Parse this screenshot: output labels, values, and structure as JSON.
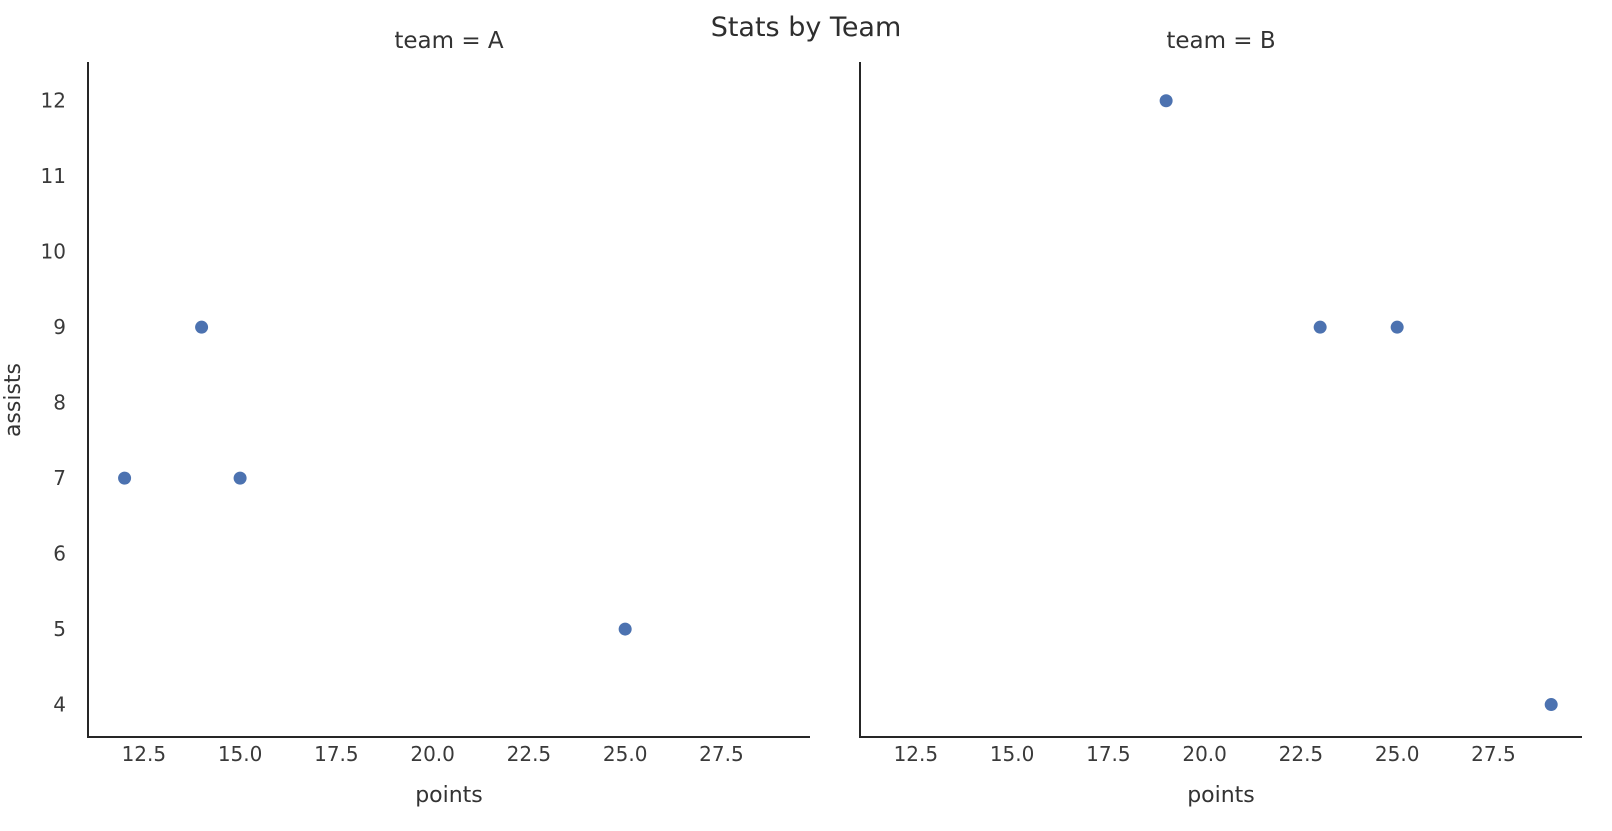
{
  "chart_data": {
    "type": "scatter",
    "title": "Stats by Team",
    "facet_by": "team",
    "xlabel": "points",
    "ylabel": "assists",
    "point_color": "#4c72b0",
    "axis_color": "#262626",
    "tick_label_color": "#3a3a3a",
    "grid": false,
    "legend": "none",
    "xlim": [
      11.05,
      29.8
    ],
    "ylim": [
      3.57,
      12.5
    ],
    "x_tick_values": [
      12.5,
      15.0,
      17.5,
      20.0,
      22.5,
      25.0,
      27.5
    ],
    "x_tick_labels": [
      "12.5",
      "15.0",
      "17.5",
      "20.0",
      "22.5",
      "25.0",
      "27.5"
    ],
    "y_tick_values": [
      4,
      5,
      6,
      7,
      8,
      9,
      10,
      11,
      12
    ],
    "y_tick_labels": [
      "4",
      "5",
      "6",
      "7",
      "8",
      "9",
      "10",
      "11",
      "12"
    ],
    "panels": [
      {
        "title": "team = A",
        "team": "A",
        "points": [
          {
            "points": 12,
            "assists": 7
          },
          {
            "points": 14,
            "assists": 9
          },
          {
            "points": 15,
            "assists": 7
          },
          {
            "points": 25,
            "assists": 5
          }
        ]
      },
      {
        "title": "team = B",
        "team": "B",
        "points": [
          {
            "points": 19,
            "assists": 12
          },
          {
            "points": 23,
            "assists": 9
          },
          {
            "points": 25,
            "assists": 9
          },
          {
            "points": 29,
            "assists": 4
          }
        ]
      }
    ]
  }
}
